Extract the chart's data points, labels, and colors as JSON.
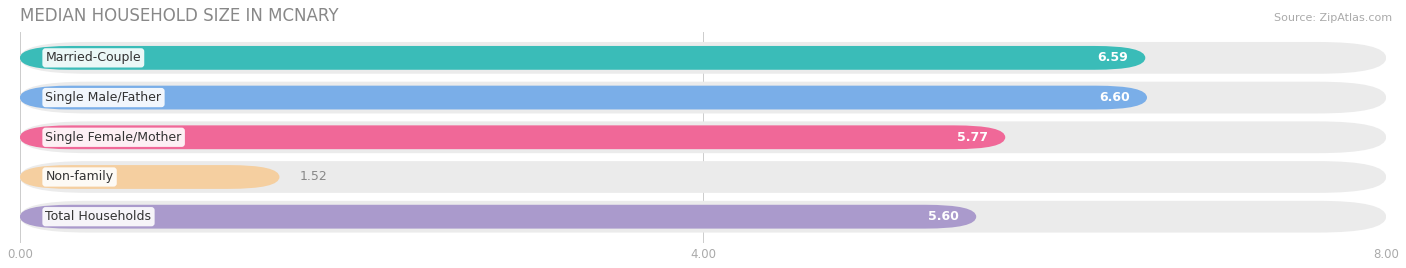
{
  "title": "MEDIAN HOUSEHOLD SIZE IN MCNARY",
  "source": "Source: ZipAtlas.com",
  "categories": [
    "Married-Couple",
    "Single Male/Father",
    "Single Female/Mother",
    "Non-family",
    "Total Households"
  ],
  "values": [
    6.59,
    6.6,
    5.77,
    1.52,
    5.6
  ],
  "bar_colors": [
    "#3abcb8",
    "#7aaee8",
    "#f06898",
    "#f5cfa0",
    "#aa9acc"
  ],
  "bar_bg_colors": [
    "#ebebeb",
    "#ebebeb",
    "#ebebeb",
    "#ebebeb",
    "#ebebeb"
  ],
  "xlim": [
    0,
    8.0
  ],
  "xticks": [
    0.0,
    4.0,
    8.0
  ],
  "xtick_labels": [
    "0.00",
    "4.00",
    "8.00"
  ],
  "title_fontsize": 12,
  "label_fontsize": 9,
  "value_fontsize": 9,
  "background_color": "#ffffff"
}
